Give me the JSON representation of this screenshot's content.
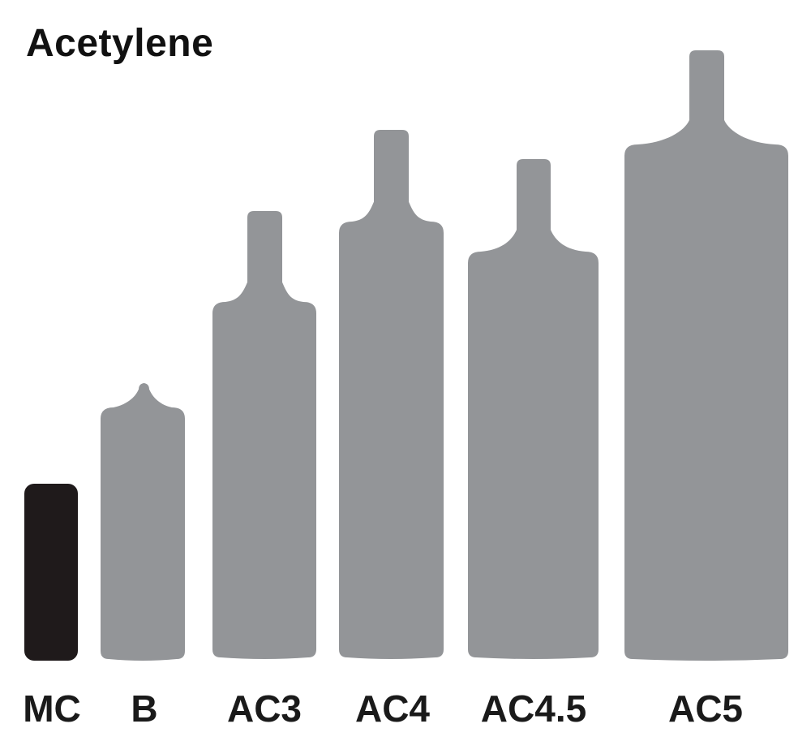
{
  "title": "Acetylene",
  "colors": {
    "highlight": "#1f1a1b",
    "cylinder": "#939598",
    "text": "#1a1a1a"
  },
  "cylinders": [
    {
      "label": "MC",
      "highlighted": true
    },
    {
      "label": "B",
      "highlighted": false
    },
    {
      "label": "AC3",
      "highlighted": false
    },
    {
      "label": "AC4",
      "highlighted": false
    },
    {
      "label": "AC4.5",
      "highlighted": false
    },
    {
      "label": "AC5",
      "highlighted": false
    }
  ]
}
